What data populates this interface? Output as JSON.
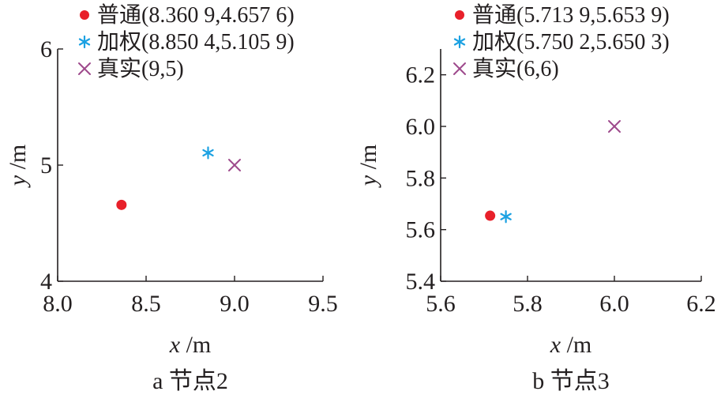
{
  "chart_data": [
    {
      "type": "scatter",
      "caption": "a  节点2",
      "xlabel_var": "x",
      "xlabel_unit": " /m",
      "ylabel_var": "y",
      "ylabel_unit": " /m",
      "xlim": [
        8.0,
        9.5
      ],
      "ylim": [
        4,
        6
      ],
      "xticks": [
        8.0,
        8.5,
        9.0,
        9.5
      ],
      "xtick_labels": [
        "8.0",
        "8.5",
        "9.0",
        "9.5"
      ],
      "yticks": [
        4,
        5,
        6
      ],
      "ytick_labels": [
        "4",
        "5",
        "6"
      ],
      "grid": false,
      "legend_position": "top",
      "series": [
        {
          "name": "普通(8.360 9,4.657 6)",
          "marker": "circle",
          "color": "#e8202a",
          "points": [
            {
              "x": 8.3609,
              "y": 4.6576
            }
          ]
        },
        {
          "name": "加权(8.850 4,5.105 9)",
          "marker": "asterisk",
          "color": "#1ba1e2",
          "points": [
            {
              "x": 8.8504,
              "y": 5.1059
            }
          ]
        },
        {
          "name": "真实(9,5)",
          "marker": "cross",
          "color": "#9e4a8c",
          "points": [
            {
              "x": 9,
              "y": 5
            }
          ]
        }
      ]
    },
    {
      "type": "scatter",
      "caption": "b  节点3",
      "xlabel_var": "x",
      "xlabel_unit": " /m",
      "ylabel_var": "y",
      "ylabel_unit": " /m",
      "xlim": [
        5.6,
        6.2
      ],
      "ylim": [
        5.4,
        6.3
      ],
      "xticks": [
        5.6,
        5.8,
        6.0,
        6.2
      ],
      "xtick_labels": [
        "5.6",
        "5.8",
        "6.0",
        "6.2"
      ],
      "yticks": [
        5.4,
        5.6,
        5.8,
        6.0,
        6.2
      ],
      "ytick_labels": [
        "5.4",
        "5.6",
        "5.8",
        "6.0",
        "6.2"
      ],
      "grid": false,
      "legend_position": "top",
      "series": [
        {
          "name": "普通(5.713 9,5.653 9)",
          "marker": "circle",
          "color": "#e8202a",
          "points": [
            {
              "x": 5.7139,
              "y": 5.6539
            }
          ]
        },
        {
          "name": "加权(5.750 2,5.650 3)",
          "marker": "asterisk",
          "color": "#1ba1e2",
          "points": [
            {
              "x": 5.7502,
              "y": 5.6503
            }
          ]
        },
        {
          "name": "真实(6,6)",
          "marker": "cross",
          "color": "#9e4a8c",
          "points": [
            {
              "x": 6,
              "y": 6
            }
          ]
        }
      ]
    }
  ]
}
